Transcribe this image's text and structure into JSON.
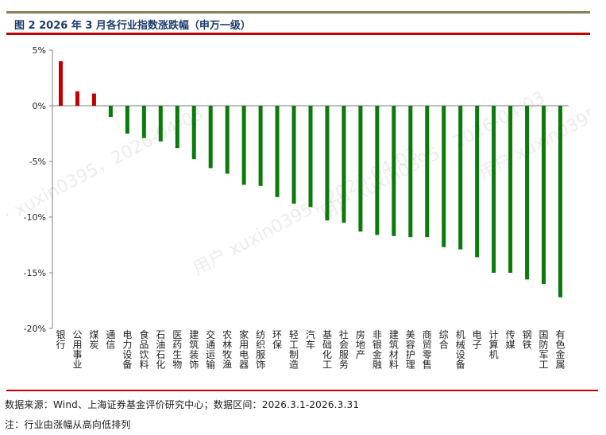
{
  "figure": {
    "title": "图 2  2026 年 3 月各行业指数涨跌幅（申万一级）",
    "source_note": "数据来源：Wind、上海证券基金评价研究中心；数据区间：2026.3.1-2026.3.31",
    "remark_note": "注：行业由涨幅从高向低排列"
  },
  "watermarks": [
    "用户 xuxin0395，2026-04-03"
  ],
  "colors": {
    "positive": "#c00000",
    "negative": "#0a7a0a",
    "rule_top": "#8b7d55",
    "rule_red": "#c00000",
    "title": "#1d3a6d"
  },
  "chart_data": {
    "type": "bar",
    "title": "",
    "xlabel": "",
    "ylabel": "",
    "ylim": [
      -20,
      5
    ],
    "yticks": [
      5,
      0,
      -5,
      -10,
      -15,
      -20
    ],
    "ytick_labels": [
      "5%",
      "0%",
      "-5%",
      "-10%",
      "-15%",
      "-20%"
    ],
    "grid": false,
    "legend": "none",
    "categories": [
      "银行",
      "公用事业",
      "煤炭",
      "通信",
      "电力设备",
      "食品饮料",
      "石油石化",
      "医药生物",
      "建筑装饰",
      "交通运输",
      "农林牧渔",
      "家用电器",
      "纺织服饰",
      "环保",
      "轻工制造",
      "汽车",
      "基础化工",
      "社会服务",
      "房地产",
      "非银金融",
      "建筑材料",
      "美容护理",
      "商贸零售",
      "综合",
      "机械设备",
      "电子",
      "计算机",
      "传媒",
      "钢铁",
      "国防军工",
      "有色金属"
    ],
    "values": [
      4.0,
      1.3,
      1.1,
      -1.0,
      -2.5,
      -2.9,
      -3.2,
      -3.8,
      -4.8,
      -5.6,
      -6.1,
      -7.1,
      -7.2,
      -8.2,
      -8.8,
      -9.1,
      -10.3,
      -10.5,
      -11.3,
      -11.6,
      -11.7,
      -11.8,
      -11.8,
      -12.7,
      -12.9,
      -13.6,
      -15.0,
      -15.0,
      -15.6,
      -16.0,
      -17.2
    ]
  }
}
